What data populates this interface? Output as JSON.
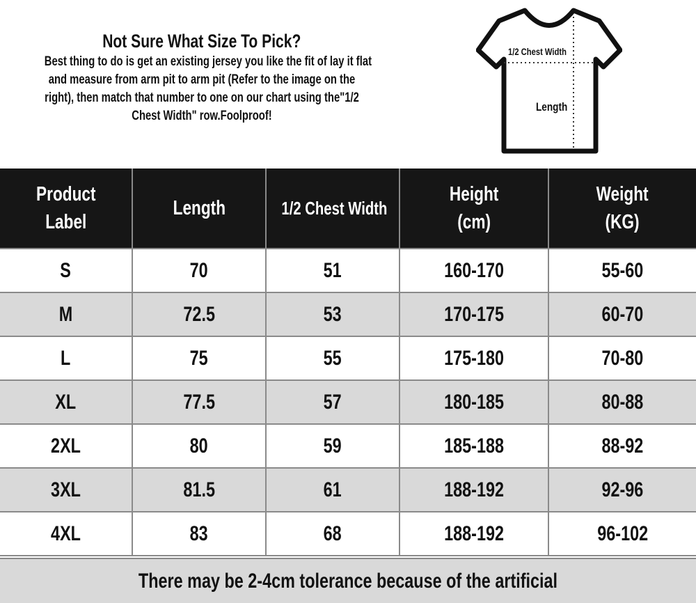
{
  "intro": {
    "title": "Not Sure What Size To Pick?",
    "lines": [
      "Best thing to do is get an existing jersey you like the fit of lay it flat",
      "and measure from arm pit to arm pit (Refer to the image on the",
      "right), then match that number to one on our chart using the\"1/2",
      "Chest Width\" row.Foolproof!"
    ]
  },
  "diagram": {
    "icon": "t-shirt-measurement-icon",
    "chest_label": "1/2 Chest Width",
    "length_label": "Length"
  },
  "table": {
    "headers": [
      [
        "Product",
        "Label"
      ],
      [
        "Length"
      ],
      [
        "1/2 Chest Width"
      ],
      [
        "Height",
        "(cm)"
      ],
      [
        "Weight",
        "(KG)"
      ]
    ],
    "rows": [
      [
        "S",
        "70",
        "51",
        "160-170",
        "55-60"
      ],
      [
        "M",
        "72.5",
        "53",
        "170-175",
        "60-70"
      ],
      [
        "L",
        "75",
        "55",
        "175-180",
        "70-80"
      ],
      [
        "XL",
        "77.5",
        "57",
        "180-185",
        "80-88"
      ],
      [
        "2XL",
        "80",
        "59",
        "185-188",
        "88-92"
      ],
      [
        "3XL",
        "81.5",
        "61",
        "188-192",
        "92-96"
      ],
      [
        "4XL",
        "83",
        "68",
        "188-192",
        "96-102"
      ]
    ]
  },
  "footer": "There may be 2-4cm tolerance because of the artificial",
  "colors": {
    "header_bg": "#161616",
    "alt_row": "#d9d9d9",
    "border": "#8a8a8a"
  }
}
